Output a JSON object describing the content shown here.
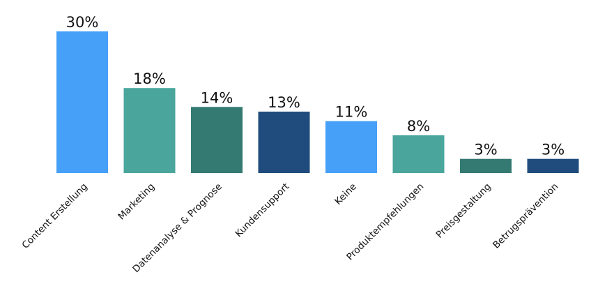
{
  "chart_data": {
    "type": "bar",
    "title": "",
    "xlabel": "",
    "ylabel": "",
    "categories": [
      "Content Erstellung",
      "Marketing",
      "Datenanalyse & Prognose",
      "Kundensupport",
      "Keine",
      "Produktempfehlungen",
      "Preisgestaltung",
      "Betrugsprävention"
    ],
    "values": [
      30,
      18,
      14,
      13,
      11,
      8,
      3,
      3
    ],
    "value_labels": [
      "30%",
      "18%",
      "14%",
      "13%",
      "11%",
      "8%",
      "3%",
      "3%"
    ],
    "colors": [
      "#47A0F7",
      "#4AA69C",
      "#347A72",
      "#1F4C7C",
      "#47A0F7",
      "#4AA69C",
      "#347A72",
      "#1F4C7C"
    ],
    "ylim": [
      0,
      30
    ],
    "grid": false,
    "legend": "none"
  }
}
